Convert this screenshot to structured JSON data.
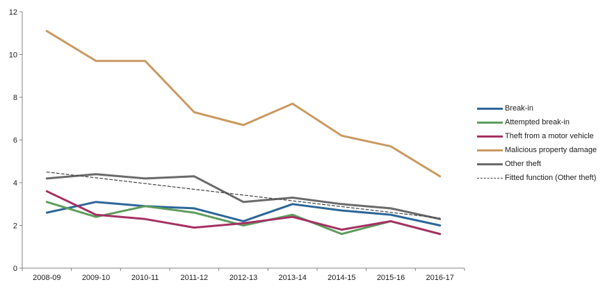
{
  "chart_data": {
    "type": "line",
    "title": "",
    "xlabel": "",
    "ylabel": "",
    "categories": [
      "2008-09",
      "2009-10",
      "2010-11",
      "2011-12",
      "2012-13",
      "2013-14",
      "2014-15",
      "2015-16",
      "2016-17"
    ],
    "series": [
      {
        "name": "Break-in",
        "color": "#2c6598",
        "style": "solid",
        "values": [
          2.6,
          3.1,
          2.9,
          2.8,
          2.2,
          3.0,
          2.7,
          2.5,
          2.0
        ]
      },
      {
        "name": "Attempted break-in",
        "color": "#5d9c5c",
        "style": "solid",
        "values": [
          3.1,
          2.4,
          2.9,
          2.6,
          2.0,
          2.5,
          1.6,
          2.2,
          1.6
        ]
      },
      {
        "name": "Theft from a motor vehicle",
        "color": "#a53062",
        "style": "solid",
        "values": [
          3.6,
          2.5,
          2.3,
          1.9,
          2.1,
          2.4,
          1.8,
          2.2,
          1.6
        ]
      },
      {
        "name": "Malicious property damage",
        "color": "#c99960",
        "style": "solid",
        "values": [
          11.1,
          9.7,
          9.7,
          7.3,
          6.7,
          7.7,
          6.2,
          5.7,
          4.3
        ]
      },
      {
        "name": "Other theft",
        "color": "#696969",
        "style": "solid",
        "values": [
          4.2,
          4.4,
          4.2,
          4.3,
          3.1,
          3.3,
          3.0,
          2.8,
          2.3
        ]
      },
      {
        "name": "Fitted function (Other theft)",
        "color": "#3f3f3f",
        "style": "dashed",
        "values": [
          4.5,
          4.23,
          3.96,
          3.69,
          3.42,
          3.15,
          2.88,
          2.61,
          2.34
        ]
      }
    ],
    "ylim": [
      0,
      12
    ],
    "yticks": [
      0,
      2,
      4,
      6,
      8,
      10,
      12
    ],
    "grid": false,
    "legend_position": "right",
    "axis_color": "#808080",
    "tick_label_color": "#1a1a1a"
  }
}
